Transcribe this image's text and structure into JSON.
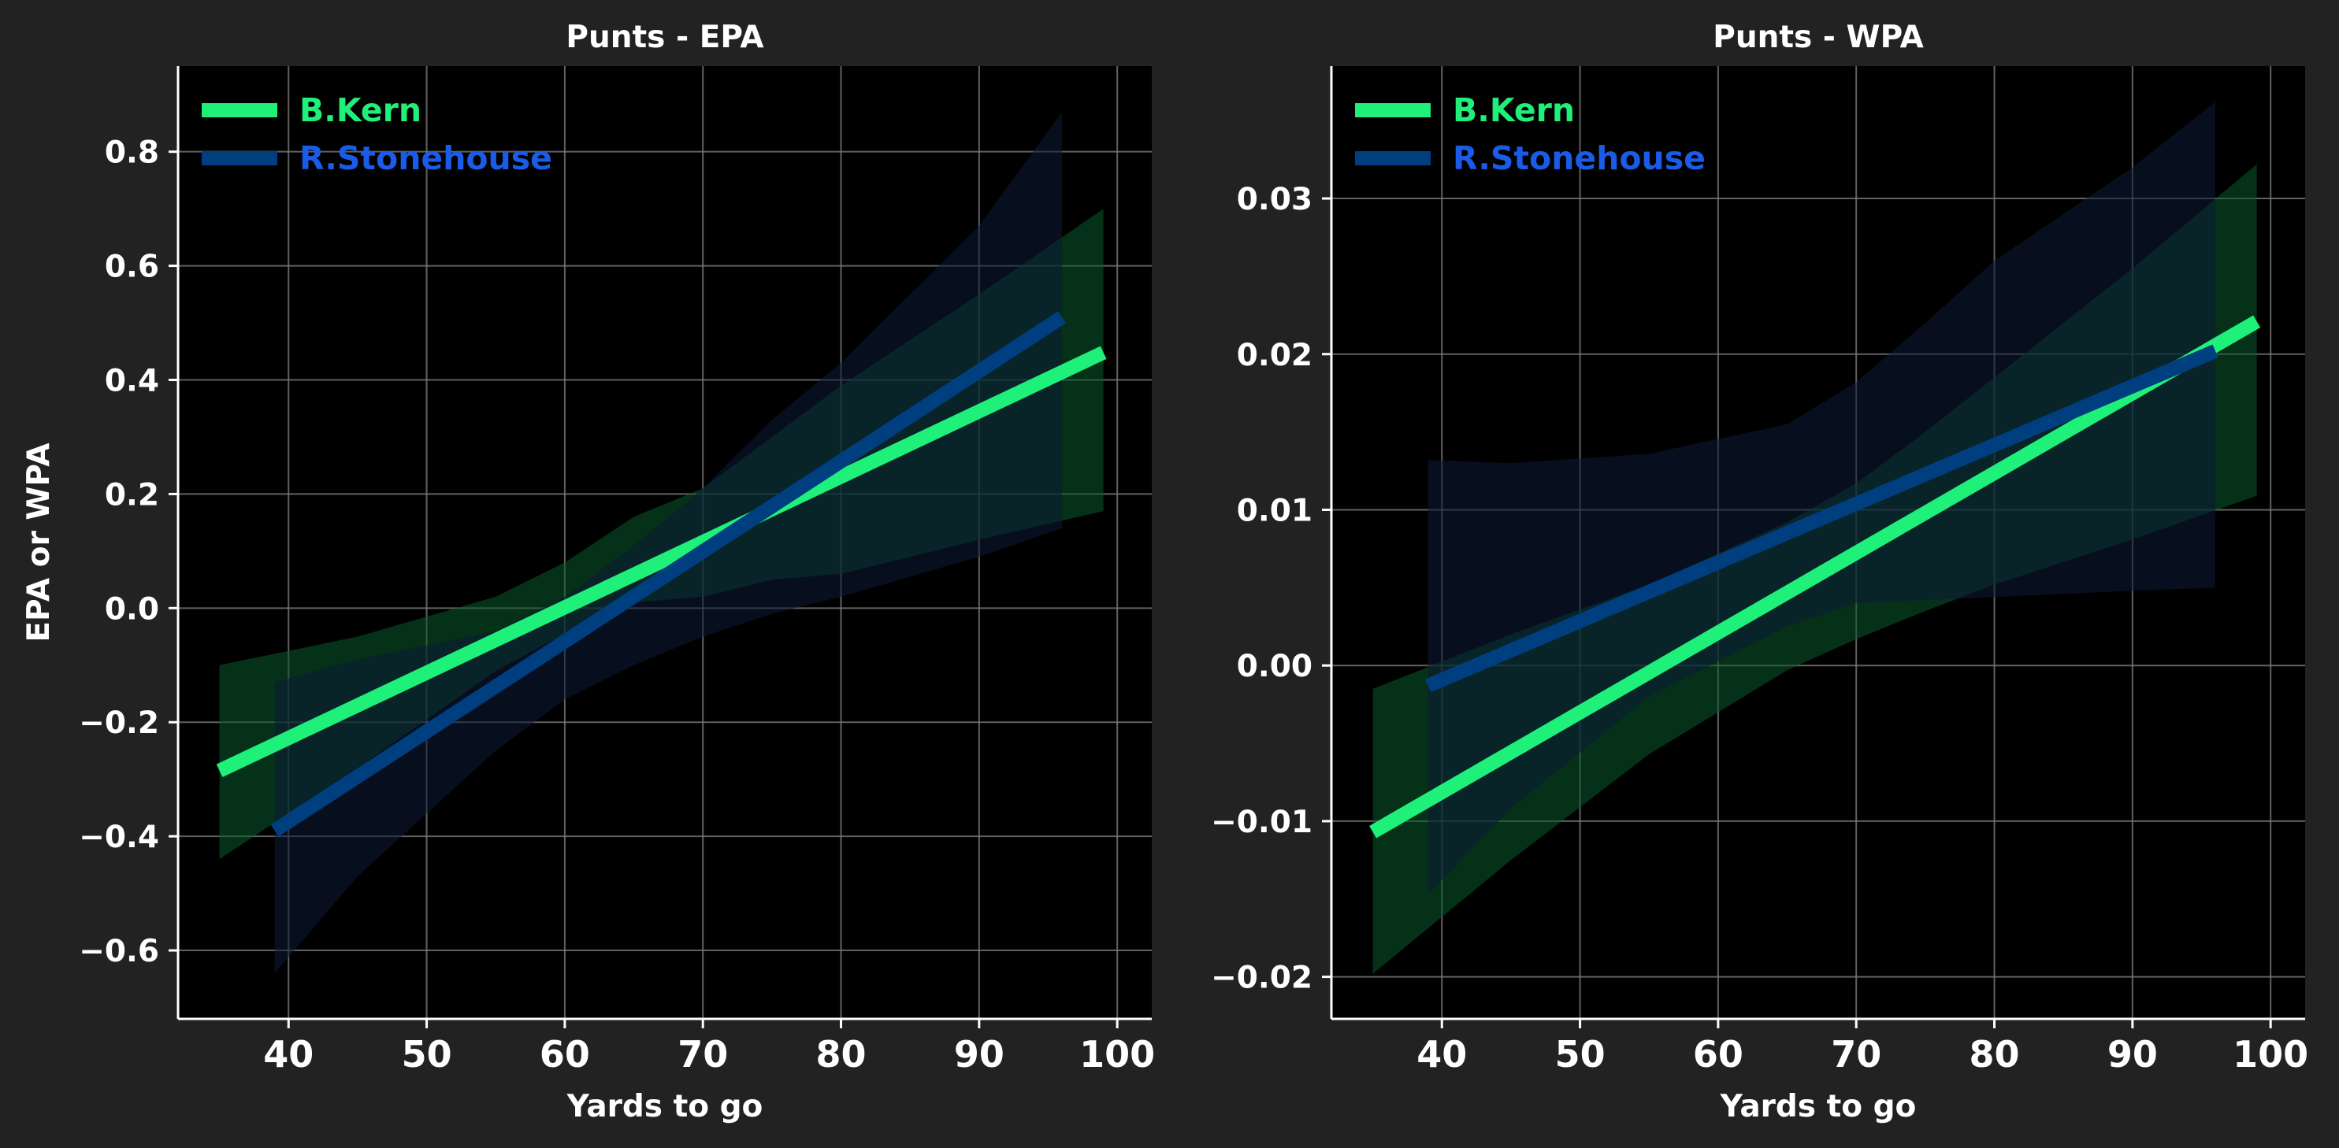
{
  "colors": {
    "figure_bg": "#222222",
    "axes_bg": "#000000",
    "grid": "#7a7a7a",
    "text": "#ffffff",
    "series": [
      "#1ef07a",
      "#003f7f"
    ],
    "bands": [
      "#0a5a2e",
      "#0d1a36"
    ],
    "legend_text": [
      "#1ef07a",
      "#1a5be8"
    ]
  },
  "chart_data": [
    {
      "type": "line",
      "title": "Punts - EPA",
      "xlabel": "Yards to go",
      "ylabel": "EPA or WPA",
      "xlim": [
        32,
        102.5
      ],
      "ylim": [
        -0.72,
        0.95
      ],
      "xticks": [
        40,
        50,
        60,
        70,
        80,
        90,
        100
      ],
      "yticks": [
        -0.6,
        -0.4,
        -0.2,
        0.0,
        0.2,
        0.4,
        0.6,
        0.8
      ],
      "ytick_labels": [
        "−0.6",
        "−0.4",
        "−0.2",
        "0.0",
        "0.2",
        "0.4",
        "0.6",
        "0.8"
      ],
      "grid": true,
      "legend_position": "top-left",
      "series": [
        {
          "name": "B.Kern",
          "x": [
            35,
            99
          ],
          "y": [
            -0.285,
            0.448
          ],
          "band_x": [
            35,
            45,
            55,
            60,
            65,
            70,
            75,
            80,
            90,
            99
          ],
          "band_lower": [
            -0.44,
            -0.28,
            -0.11,
            -0.045,
            0.01,
            0.02,
            0.05,
            0.06,
            0.12,
            0.17
          ],
          "band_upper": [
            -0.1,
            -0.05,
            0.02,
            0.08,
            0.16,
            0.21,
            0.3,
            0.39,
            0.55,
            0.7
          ]
        },
        {
          "name": "R.Stonehouse",
          "x": [
            39,
            96
          ],
          "y": [
            -0.39,
            0.51
          ],
          "band_x": [
            39,
            45,
            55,
            60,
            65,
            70,
            75,
            80,
            90,
            96
          ],
          "band_lower": [
            -0.64,
            -0.47,
            -0.25,
            -0.16,
            -0.1,
            -0.05,
            -0.01,
            0.02,
            0.09,
            0.14
          ],
          "band_upper": [
            -0.13,
            -0.09,
            -0.04,
            0.02,
            0.11,
            0.21,
            0.33,
            0.43,
            0.67,
            0.87
          ]
        }
      ]
    },
    {
      "type": "line",
      "title": "Punts - WPA",
      "xlabel": "Yards to go",
      "ylabel": "",
      "xlim": [
        32,
        102.5
      ],
      "ylim": [
        -0.0227,
        0.0385
      ],
      "xticks": [
        40,
        50,
        60,
        70,
        80,
        90,
        100
      ],
      "yticks": [
        -0.02,
        -0.01,
        0.0,
        0.01,
        0.02,
        0.03
      ],
      "ytick_labels": [
        "−0.02",
        "−0.01",
        "0.00",
        "0.01",
        "0.02",
        "0.03"
      ],
      "grid": true,
      "legend_position": "top-left",
      "series": [
        {
          "name": "B.Kern",
          "x": [
            35,
            99
          ],
          "y": [
            -0.0107,
            0.0221
          ],
          "band_x": [
            35,
            45,
            55,
            65,
            70,
            75,
            80,
            90,
            99
          ],
          "band_lower": [
            -0.0198,
            -0.0125,
            -0.0057,
            -0.0003,
            0.0017,
            0.0035,
            0.0052,
            0.0081,
            0.0109
          ],
          "band_upper": [
            -0.0015,
            0.002,
            0.0052,
            0.0092,
            0.0117,
            0.015,
            0.0185,
            0.0255,
            0.0322
          ]
        },
        {
          "name": "R.Stonehouse",
          "x": [
            39,
            96
          ],
          "y": [
            -0.0013,
            0.0202
          ],
          "band_x": [
            39,
            45,
            55,
            65,
            70,
            75,
            80,
            90,
            96
          ],
          "band_lower": [
            -0.0147,
            -0.0092,
            -0.002,
            0.0025,
            0.004,
            0.0042,
            0.0044,
            0.0048,
            0.005
          ],
          "band_upper": [
            0.0132,
            0.013,
            0.0136,
            0.0155,
            0.0182,
            0.022,
            0.026,
            0.032,
            0.0362
          ]
        }
      ]
    }
  ]
}
